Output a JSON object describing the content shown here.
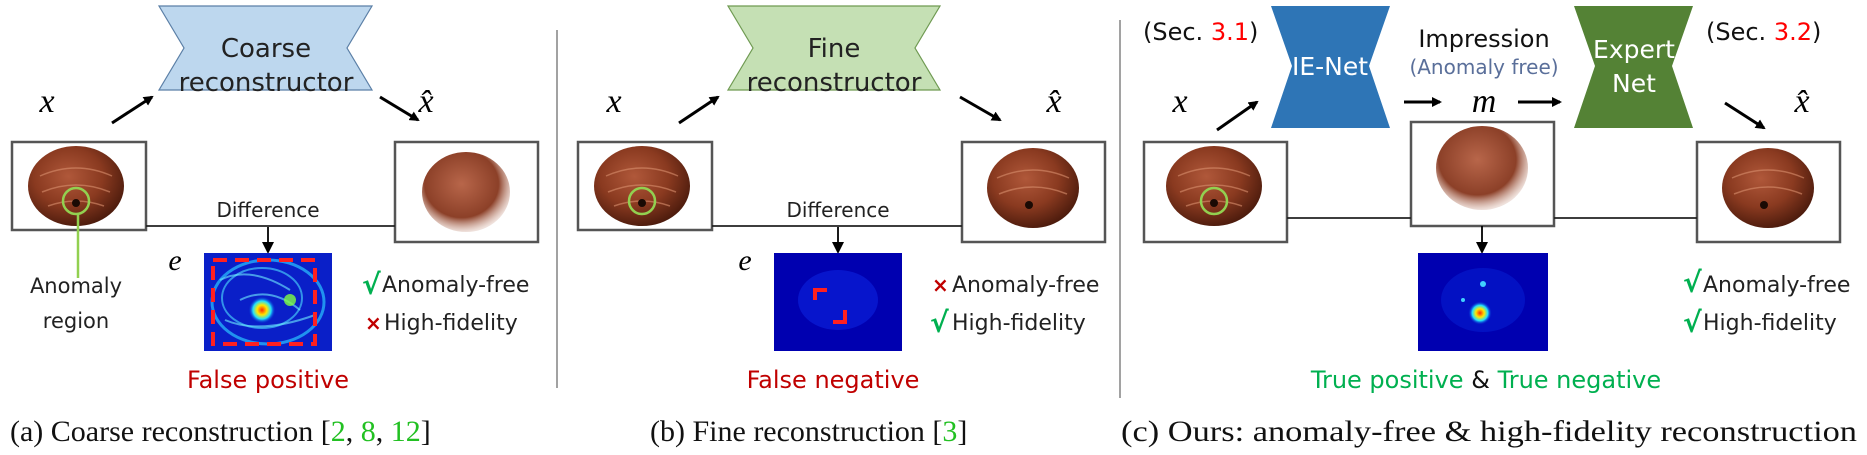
{
  "colors": {
    "coarse_fill": "#bdd7ee",
    "fine_fill": "#c5e0b4",
    "ienet_fill": "#2e75b6",
    "expert_fill": "#548235",
    "red": "#c00000",
    "green": "#00b050",
    "cite_green": "#22c022",
    "anomaly_circle": "#92d050"
  },
  "panel_a": {
    "network": [
      "Coarse",
      "reconstructor"
    ],
    "x": "x",
    "xhat": "x̂",
    "difference": "Difference",
    "e": "e",
    "anomaly_region": [
      "Anomaly",
      "region"
    ],
    "check1": {
      "mark": "√",
      "text": "Anomaly-free"
    },
    "check2": {
      "mark": "×",
      "text": "High-fidelity"
    },
    "verdict": "False positive",
    "caption_text": "(a) Coarse reconstruction [",
    "caption_cites": [
      "2",
      "8",
      "12"
    ],
    "caption_end": "]"
  },
  "panel_b": {
    "network": [
      "Fine",
      "reconstructor"
    ],
    "x": "x",
    "xhat": "x̂",
    "difference": "Difference",
    "e": "e",
    "check1": {
      "mark": "×",
      "text": "Anomaly-free"
    },
    "check2": {
      "mark": "√",
      "text": "High-fidelity"
    },
    "verdict": "False negative",
    "caption_text": "(b) Fine reconstruction [",
    "caption_cites": [
      "3"
    ],
    "caption_end": "]"
  },
  "panel_c": {
    "sec_left": {
      "pre": "(Sec. ",
      "num": "3.1",
      "post": ")"
    },
    "sec_right": {
      "pre": "(Sec. ",
      "num": "3.2",
      "post": ")"
    },
    "ienet": "IE-Net",
    "impression": "Impression",
    "anomaly_free_paren": "(Anomaly free)",
    "m": "m",
    "expert": [
      "Expert",
      "Net"
    ],
    "x": "x",
    "xhat": "x̂",
    "check1": {
      "mark": "√",
      "text": "Anomaly-free"
    },
    "check2": {
      "mark": "√",
      "text": "High-fidelity"
    },
    "verdict_tp": "True positive",
    "verdict_amp": "&",
    "verdict_tn": "True negative",
    "caption": "(c) Ours: anomaly-free & high-fidelity reconstruction"
  }
}
